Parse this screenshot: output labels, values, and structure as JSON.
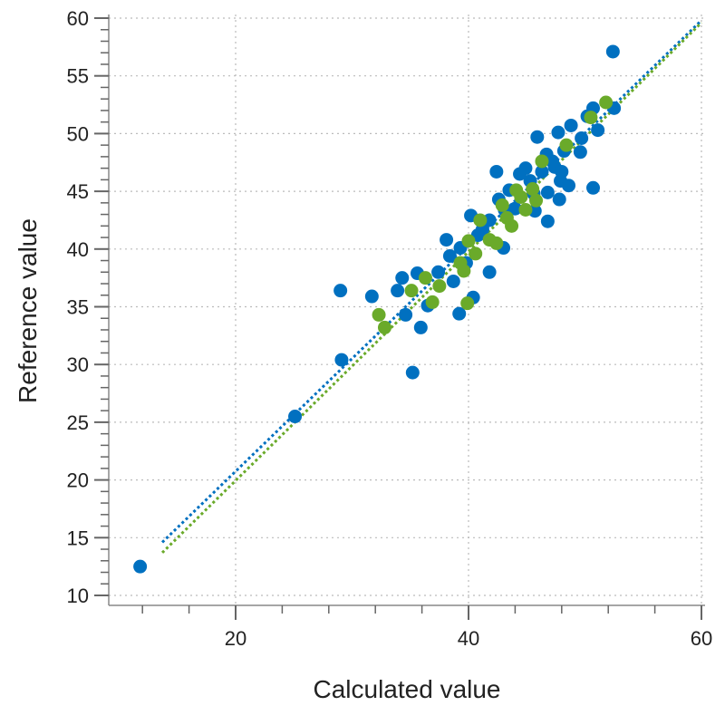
{
  "chart_data": {
    "type": "scatter",
    "title": "",
    "xlabel": "Calculated value",
    "ylabel": "Reference value",
    "xlim": [
      0,
      60
    ],
    "ylim": [
      10,
      60
    ],
    "x_ticks": [
      20,
      40,
      60
    ],
    "y_ticks": [
      10,
      15,
      20,
      25,
      30,
      35,
      40,
      45,
      50,
      55,
      60
    ],
    "grid": true,
    "colors": {
      "blue": "#0070c0",
      "green": "#6aaa2a"
    },
    "series": [
      {
        "color": "#0070c0",
        "points": [
          [
            11.8,
            12.5
          ],
          [
            25.1,
            25.5
          ],
          [
            29.1,
            30.4
          ],
          [
            29.0,
            36.4
          ],
          [
            31.7,
            35.9
          ],
          [
            33.9,
            36.4
          ],
          [
            34.3,
            37.5
          ],
          [
            35.2,
            29.3
          ],
          [
            34.6,
            34.3
          ],
          [
            35.9,
            33.2
          ],
          [
            35.6,
            37.9
          ],
          [
            37.4,
            38.0
          ],
          [
            38.1,
            40.8
          ],
          [
            38.4,
            39.4
          ],
          [
            36.5,
            35.1
          ],
          [
            39.2,
            34.4
          ],
          [
            40.4,
            35.8
          ],
          [
            40.2,
            42.9
          ],
          [
            39.3,
            40.1
          ],
          [
            41.2,
            41.7
          ],
          [
            41.8,
            38.0
          ],
          [
            43.0,
            40.1
          ],
          [
            42.4,
            46.7
          ],
          [
            41.8,
            42.5
          ],
          [
            43.1,
            43.4
          ],
          [
            44.0,
            43.5
          ],
          [
            44.4,
            46.5
          ],
          [
            45.6,
            44.8
          ],
          [
            45.7,
            43.3
          ],
          [
            45.9,
            49.7
          ],
          [
            46.8,
            44.9
          ],
          [
            46.8,
            42.4
          ],
          [
            47.9,
            45.9
          ],
          [
            47.8,
            44.3
          ],
          [
            48.2,
            48.5
          ],
          [
            48.6,
            45.5
          ],
          [
            48.8,
            50.7
          ],
          [
            49.6,
            48.4
          ],
          [
            49.7,
            49.6
          ],
          [
            50.7,
            45.3
          ],
          [
            50.7,
            52.2
          ],
          [
            52.4,
            57.1
          ],
          [
            52.5,
            52.2
          ],
          [
            51.1,
            50.3
          ],
          [
            47.4,
            47.1
          ],
          [
            46.7,
            48.2
          ],
          [
            47.2,
            47.6
          ],
          [
            48.0,
            46.7
          ],
          [
            46.3,
            46.7
          ],
          [
            45.3,
            45.9
          ],
          [
            44.9,
            47.0
          ],
          [
            43.5,
            45.1
          ],
          [
            42.6,
            44.3
          ],
          [
            40.8,
            41.2
          ],
          [
            39.8,
            38.8
          ],
          [
            38.7,
            37.2
          ],
          [
            47.7,
            50.1
          ],
          [
            50.2,
            51.5
          ]
        ],
        "fit_line": [
          [
            13.7,
            14.6
          ],
          [
            60,
            59.8
          ]
        ]
      },
      {
        "color": "#6aaa2a",
        "points": [
          [
            32.3,
            34.3
          ],
          [
            32.8,
            33.2
          ],
          [
            35.1,
            36.4
          ],
          [
            36.3,
            37.5
          ],
          [
            36.9,
            35.4
          ],
          [
            37.5,
            36.8
          ],
          [
            39.6,
            38.1
          ],
          [
            40.0,
            40.7
          ],
          [
            39.9,
            35.3
          ],
          [
            40.6,
            39.6
          ],
          [
            41.0,
            42.5
          ],
          [
            41.8,
            40.8
          ],
          [
            42.9,
            43.8
          ],
          [
            43.3,
            42.7
          ],
          [
            43.7,
            42.0
          ],
          [
            44.1,
            45.1
          ],
          [
            44.5,
            44.5
          ],
          [
            44.9,
            43.4
          ],
          [
            45.5,
            45.2
          ],
          [
            45.8,
            44.2
          ],
          [
            46.3,
            47.6
          ],
          [
            48.4,
            49.0
          ],
          [
            50.5,
            51.4
          ],
          [
            51.8,
            52.7
          ],
          [
            42.4,
            40.5
          ],
          [
            39.3,
            38.8
          ]
        ],
        "fit_line": [
          [
            13.7,
            13.7
          ],
          [
            60,
            59.6
          ]
        ]
      }
    ]
  }
}
